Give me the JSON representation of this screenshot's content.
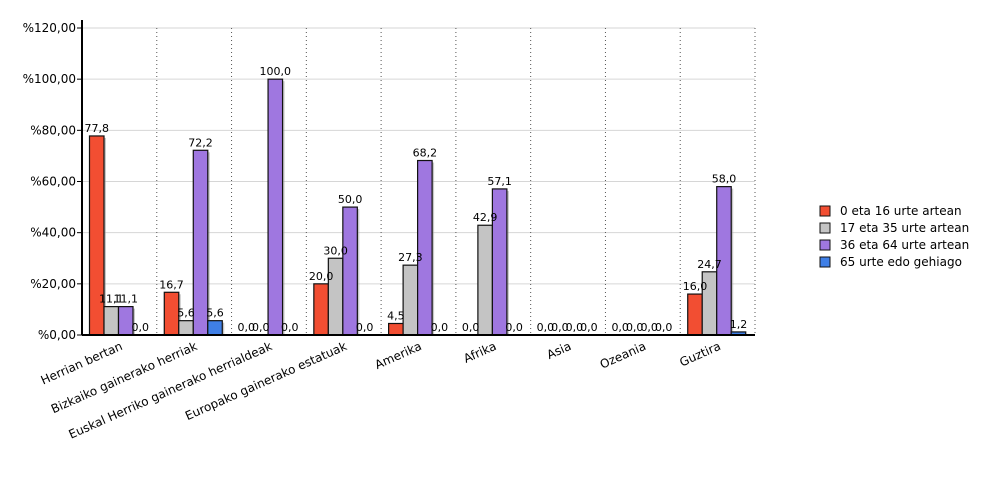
{
  "chart_data": {
    "type": "bar",
    "title": "",
    "xlabel": "",
    "ylabel": "",
    "ylim": [
      0,
      120
    ],
    "yticks": [
      0,
      20,
      40,
      60,
      80,
      100,
      120
    ],
    "ytick_labels": [
      "%0,00",
      "%20,00",
      "%40,00",
      "%60,00",
      "%80,00",
      "%100,00",
      "%120,00"
    ],
    "grid": true,
    "legend_position": "right",
    "categories": [
      "Herrian bertan",
      "Bizkaiko gainerako herriak",
      "Euskal Herriko gainerako herrialdeak",
      "Europako gainerako estatuak",
      "Amerika",
      "Afrika",
      "Asia",
      "Ozeania",
      "Guztira"
    ],
    "series": [
      {
        "name": "0 eta 16 urte artean",
        "color": "#f24e32",
        "values": [
          77.8,
          16.7,
          0.0,
          20.0,
          4.5,
          0.0,
          0.0,
          0.0,
          16.0
        ],
        "labels": [
          "77,8",
          "16,7",
          "0,0",
          "20,0",
          "4,5",
          "0,0",
          "0,0",
          "0,0",
          "16,0"
        ]
      },
      {
        "name": "17 eta 35 urte artean",
        "color": "#c4c4c4",
        "values": [
          11.1,
          5.6,
          0.0,
          30.0,
          27.3,
          42.9,
          0.0,
          0.0,
          24.7
        ],
        "labels": [
          "11,1",
          "5,6",
          "0,0",
          "30,0",
          "27,3",
          "42,9",
          "0,0",
          "0,0",
          "24,7"
        ]
      },
      {
        "name": "36 eta 64 urte artean",
        "color": "#9f77e0",
        "values": [
          11.1,
          72.2,
          100.0,
          50.0,
          68.2,
          57.1,
          0.0,
          0.0,
          58.0
        ],
        "labels": [
          "11,1",
          "72,2",
          "100,0",
          "50,0",
          "68,2",
          "57,1",
          "0,0",
          "0,0",
          "58,0"
        ]
      },
      {
        "name": "65 urte edo gehiago",
        "color": "#3f7fe6",
        "values": [
          0.0,
          5.6,
          0.0,
          0.0,
          0.0,
          0.0,
          0.0,
          0.0,
          1.2
        ],
        "labels": [
          "0,0",
          "5,6",
          "0,0",
          "0,0",
          "0,0",
          "0,0",
          "0,0",
          "0,0",
          "1,2"
        ]
      }
    ]
  }
}
